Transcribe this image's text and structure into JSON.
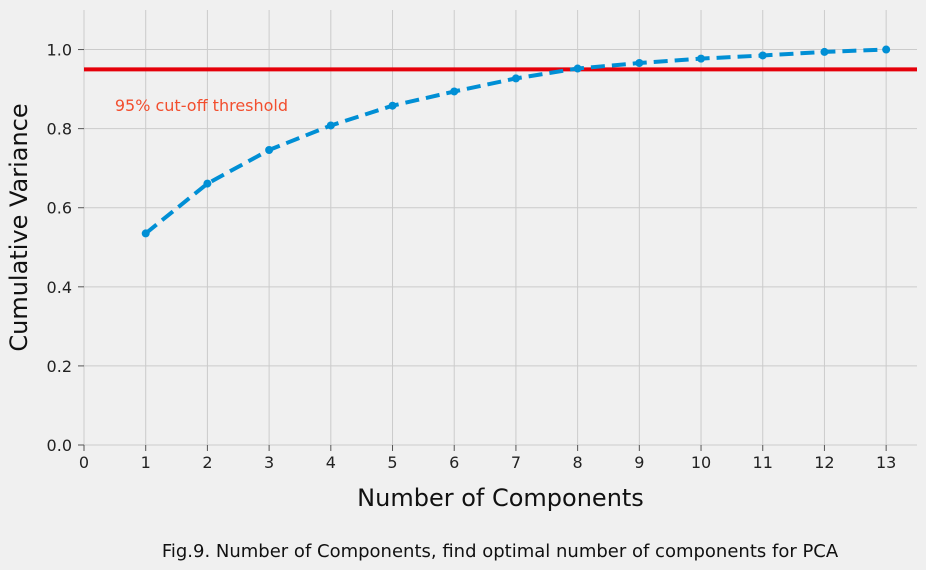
{
  "chart_data": {
    "type": "line",
    "xlabel": "Number of Components",
    "ylabel": "Cumulative Variance",
    "x": [
      1,
      2,
      3,
      4,
      5,
      6,
      7,
      8,
      9,
      10,
      11,
      12,
      13
    ],
    "series": [
      {
        "values": [
          0.535,
          0.661,
          0.746,
          0.808,
          0.858,
          0.894,
          0.927,
          0.952,
          0.966,
          0.977,
          0.985,
          0.994,
          1.0
        ],
        "color": "#008fd5",
        "style": "dashed",
        "marker": "circle"
      }
    ],
    "threshold": {
      "value": 0.95,
      "label": "95% cut-off threshold",
      "color": "#e5000a",
      "label_color": "#f24e2e"
    },
    "xlim": [
      0,
      13.5
    ],
    "ylim": [
      0,
      1.1
    ],
    "xticks": [
      "0",
      "1",
      "2",
      "3",
      "4",
      "5",
      "6",
      "7",
      "8",
      "9",
      "10",
      "11",
      "12",
      "13"
    ],
    "yticks": [
      "0.0",
      "0.2",
      "0.4",
      "0.6",
      "0.8",
      "1.0"
    ],
    "grid": true,
    "background": "#f0f0f0",
    "grid_color": "#cbcbcb"
  },
  "caption": "Fig.9. Number of Components, find optimal number of components for PCA"
}
